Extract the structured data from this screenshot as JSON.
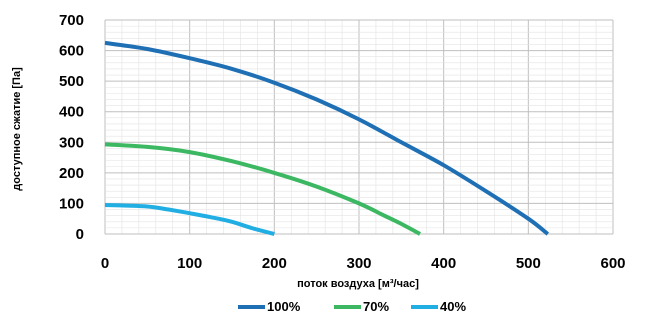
{
  "chart_data": {
    "type": "line",
    "xlabel": "поток воздуха [м³/час]",
    "ylabel": "доступное сжатие [Па]",
    "xlim": [
      0,
      600
    ],
    "ylim": [
      0,
      700
    ],
    "x_ticks": [
      "0",
      "100",
      "200",
      "300",
      "400",
      "500",
      "600"
    ],
    "y_ticks": [
      "0",
      "100",
      "200",
      "300",
      "400",
      "500",
      "600",
      "700"
    ],
    "grid": true,
    "legend_position": "bottom",
    "series": [
      {
        "name": "100%",
        "color": "#1f6fb5",
        "x": [
          0,
          50,
          100,
          150,
          200,
          250,
          300,
          350,
          400,
          450,
          500,
          523
        ],
        "y": [
          625,
          605,
          575,
          540,
          495,
          440,
          375,
          300,
          225,
          140,
          50,
          0
        ]
      },
      {
        "name": "70%",
        "color": "#3cb862",
        "x": [
          0,
          50,
          100,
          150,
          200,
          250,
          300,
          330,
          350,
          372
        ],
        "y": [
          293,
          285,
          268,
          238,
          200,
          155,
          100,
          60,
          33,
          0
        ]
      },
      {
        "name": "40%",
        "color": "#21aee3",
        "x": [
          0,
          25,
          50,
          75,
          100,
          125,
          150,
          175,
          200
        ],
        "y": [
          95,
          93,
          90,
          80,
          68,
          55,
          40,
          18,
          0
        ]
      }
    ]
  }
}
